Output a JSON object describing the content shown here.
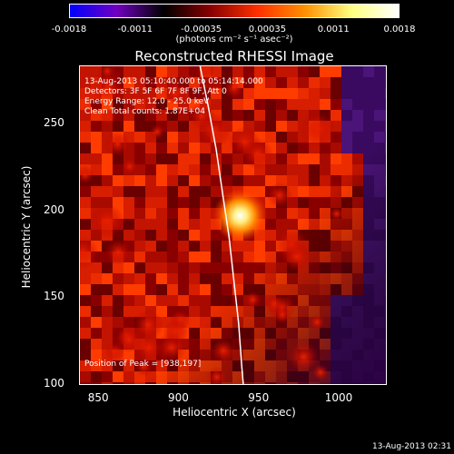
{
  "colorbar": {
    "tick_labels": [
      "-0.0018",
      "-0.0011",
      "-0.00035",
      "0.00035",
      "0.0011",
      "0.0018"
    ],
    "units": "(photons cm⁻² s⁻¹ asec⁻²)",
    "range": [
      -0.0018,
      0.0018
    ]
  },
  "annotations": {
    "time_range": "13-Aug-2013 05:10:40.000 to 05:14:14.000",
    "detectors": "Detectors: 3F 5F 6F 7F 8F 9F, Att 0",
    "energy": "Energy Range: 12.0 - 25.0 keV",
    "clean": "Clean    Total counts: 1.87E+04",
    "peak": "Position of Peak = [938,197]"
  },
  "timestamp": "13-Aug-2013 02:31",
  "chart_data": {
    "type": "heatmap",
    "title": "Reconstructed RHESSI Image",
    "xlabel": "Heliocentric X (arcsec)",
    "ylabel": "Heliocentric Y (arcsec)",
    "xlim": [
      838,
      1030
    ],
    "ylim": [
      99,
      283
    ],
    "x_ticks": [
      850,
      900,
      950,
      1000
    ],
    "y_ticks": [
      100,
      150,
      200,
      250
    ],
    "peak": {
      "x": 938,
      "y": 197
    },
    "limb_curve": [
      {
        "x": 913,
        "y": 283
      },
      {
        "x": 918,
        "y": 260
      },
      {
        "x": 923,
        "y": 235
      },
      {
        "x": 927,
        "y": 210
      },
      {
        "x": 931,
        "y": 185
      },
      {
        "x": 934,
        "y": 160
      },
      {
        "x": 937,
        "y": 135
      },
      {
        "x": 939,
        "y": 110
      },
      {
        "x": 940,
        "y": 99
      }
    ],
    "colormap": [
      "#0000ff",
      "#7000c0",
      "#000000",
      "#8a0000",
      "#ff3000",
      "#ff9000",
      "#ffff80",
      "#ffffff"
    ]
  }
}
